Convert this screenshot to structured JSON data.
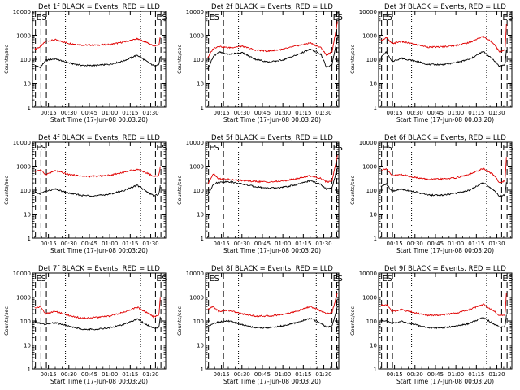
{
  "shared": {
    "ylabel": "Counts/sec",
    "xlabel": "Start Time (17-Jun-08 00:03:20)",
    "x_ticks": [
      "00:15",
      "00:30",
      "00:45",
      "01:00",
      "01:15",
      "01:30"
    ],
    "y_ticks": [
      "1",
      "10",
      "100",
      "1000",
      "10000"
    ],
    "black_color": "#000000",
    "red_color": "#e00000",
    "x_range_minutes": [
      3.33,
      101
    ],
    "y_range": [
      1,
      10000
    ],
    "y_scale": "log"
  },
  "chart_data": [
    {
      "type": "line",
      "title": "Det 1f BLACK = Events, RED = LLD",
      "series": [
        {
          "x": [
            5,
            9,
            13,
            20,
            30,
            40,
            50,
            60,
            70,
            80,
            88,
            92,
            96,
            97
          ],
          "values": [
            260,
            330,
            560,
            650,
            460,
            390,
            390,
            410,
            520,
            700,
            480,
            360,
            380,
            900
          ]
        },
        {
          "x": [
            5,
            9,
            13,
            20,
            30,
            40,
            50,
            60,
            70,
            80,
            88,
            92,
            96,
            97
          ],
          "values": [
            55,
            45,
            90,
            105,
            70,
            55,
            55,
            62,
            85,
            150,
            75,
            55,
            60,
            130
          ]
        }
      ],
      "markers": {
        "dashed": [
          5.5,
          9.5,
          13.5,
          93.5,
          97.5
        ],
        "dotted": [
          27.5,
          82.5
        ],
        "labels": [
          {
            "text": "E",
            "x": 5.5
          },
          {
            "text": "S",
            "x": 9.5
          },
          {
            "text": "E",
            "x": 93.5
          },
          {
            "text": "S",
            "x": 97.5
          }
        ]
      }
    },
    {
      "type": "line",
      "title": "Det 2f BLACK = Events, RED = LLD",
      "series": [
        {
          "x": [
            5,
            9,
            13,
            20,
            30,
            40,
            50,
            60,
            70,
            80,
            88,
            92,
            96,
            100
          ],
          "values": [
            120,
            280,
            350,
            300,
            350,
            240,
            220,
            260,
            360,
            480,
            300,
            150,
            200,
            3500
          ]
        },
        {
          "x": [
            5,
            9,
            13,
            20,
            30,
            40,
            50,
            60,
            70,
            80,
            88,
            92,
            96,
            100
          ],
          "values": [
            40,
            130,
            200,
            160,
            190,
            100,
            75,
            95,
            150,
            260,
            160,
            45,
            60,
            800
          ]
        }
      ],
      "markers": {
        "dashed": [
          5.5,
          16.5,
          96,
          99.5
        ],
        "dotted": [
          27.5,
          84.5
        ],
        "labels": [
          {
            "text": "E",
            "x": 5.5
          },
          {
            "text": "S",
            "x": 9
          },
          {
            "text": "E",
            "x": 96
          },
          {
            "text": "S",
            "x": 99.5
          }
        ]
      }
    },
    {
      "type": "line",
      "title": "Det 3f BLACK = Events, RED = LLD",
      "series": [
        {
          "x": [
            5,
            9,
            13,
            20,
            30,
            40,
            50,
            60,
            70,
            80,
            88,
            92,
            96,
            97
          ],
          "values": [
            600,
            800,
            450,
            550,
            420,
            320,
            330,
            380,
            500,
            900,
            450,
            200,
            250,
            3000
          ]
        },
        {
          "x": [
            5,
            9,
            13,
            20,
            30,
            40,
            50,
            60,
            70,
            80,
            88,
            92,
            96,
            97
          ],
          "values": [
            120,
            200,
            80,
            110,
            85,
            60,
            60,
            72,
            100,
            210,
            90,
            50,
            60,
            250
          ]
        }
      ],
      "markers": {
        "dashed": [
          5.5,
          9.5,
          13.5,
          93.5,
          97.5
        ],
        "dotted": [
          27.5,
          82.5
        ],
        "labels": [
          {
            "text": "E",
            "x": 5.5
          },
          {
            "text": "S",
            "x": 9
          },
          {
            "text": "E",
            "x": 93.5
          },
          {
            "text": "S",
            "x": 97.5
          }
        ]
      }
    },
    {
      "type": "line",
      "title": "Det 4f BLACK = Events, RED = LLD",
      "series": [
        {
          "x": [
            5,
            9,
            13,
            20,
            30,
            40,
            50,
            60,
            70,
            80,
            88,
            92,
            96,
            97
          ],
          "values": [
            600,
            700,
            450,
            650,
            450,
            380,
            380,
            420,
            560,
            750,
            500,
            380,
            420,
            950
          ]
        },
        {
          "x": [
            5,
            9,
            13,
            20,
            30,
            40,
            50,
            60,
            70,
            80,
            88,
            92,
            96,
            97
          ],
          "values": [
            80,
            70,
            90,
            110,
            75,
            60,
            58,
            68,
            95,
            160,
            80,
            60,
            65,
            160
          ]
        }
      ],
      "markers": {
        "dashed": [
          5.5,
          9.5,
          13.5,
          93.5,
          97.5
        ],
        "dotted": [
          27.5,
          82.5
        ],
        "labels": [
          {
            "text": "E",
            "x": 5.5
          },
          {
            "text": "S",
            "x": 9
          },
          {
            "text": "E",
            "x": 93.5
          },
          {
            "text": "S",
            "x": 97.5
          }
        ]
      }
    },
    {
      "type": "line",
      "title": "Det 5f BLACK = Events, RED = LLD",
      "series": [
        {
          "x": [
            5,
            9,
            13,
            20,
            30,
            40,
            50,
            60,
            70,
            80,
            88,
            92,
            96,
            100
          ],
          "values": [
            180,
            500,
            300,
            280,
            250,
            230,
            220,
            240,
            300,
            400,
            310,
            220,
            240,
            2800
          ]
        },
        {
          "x": [
            5,
            9,
            13,
            20,
            30,
            40,
            50,
            60,
            70,
            80,
            88,
            92,
            96,
            100
          ],
          "values": [
            60,
            180,
            210,
            230,
            180,
            140,
            120,
            130,
            170,
            250,
            170,
            110,
            120,
            900
          ]
        }
      ],
      "markers": {
        "dashed": [
          5.5,
          16.5,
          96,
          99.5
        ],
        "dotted": [
          27.5,
          84.5
        ],
        "labels": [
          {
            "text": "E",
            "x": 5.5
          },
          {
            "text": "S",
            "x": 9
          },
          {
            "text": "E",
            "x": 96
          },
          {
            "text": "S",
            "x": 99.5
          }
        ]
      }
    },
    {
      "type": "line",
      "title": "Det 6f BLACK = Events, RED = LLD",
      "series": [
        {
          "x": [
            5,
            9,
            13,
            20,
            30,
            40,
            50,
            60,
            70,
            80,
            88,
            92,
            96,
            97
          ],
          "values": [
            650,
            800,
            400,
            450,
            340,
            280,
            290,
            330,
            450,
            800,
            420,
            200,
            250,
            2500
          ]
        },
        {
          "x": [
            5,
            9,
            13,
            20,
            30,
            40,
            50,
            60,
            70,
            80,
            88,
            92,
            96,
            97
          ],
          "values": [
            140,
            180,
            90,
            110,
            85,
            62,
            62,
            75,
            100,
            210,
            95,
            55,
            65,
            220
          ]
        }
      ],
      "markers": {
        "dashed": [
          5.5,
          9.5,
          13.5,
          93.5,
          97.5
        ],
        "dotted": [
          27.5,
          82.5
        ],
        "labels": [
          {
            "text": "E",
            "x": 5.5
          },
          {
            "text": "S",
            "x": 9
          },
          {
            "text": "E",
            "x": 93.5
          },
          {
            "text": "S",
            "x": 97.5
          }
        ]
      }
    },
    {
      "type": "line",
      "title": "Det 7f BLACK = Events, RED = LLD",
      "series": [
        {
          "x": [
            5,
            9,
            13,
            20,
            30,
            40,
            50,
            60,
            70,
            80,
            88,
            92,
            96,
            97
          ],
          "values": [
            350,
            400,
            200,
            250,
            170,
            130,
            140,
            160,
            230,
            380,
            210,
            150,
            170,
            900
          ]
        },
        {
          "x": [
            5,
            9,
            13,
            20,
            30,
            40,
            50,
            60,
            70,
            80,
            88,
            92,
            96,
            97
          ],
          "values": [
            90,
            80,
            70,
            85,
            60,
            45,
            45,
            52,
            70,
            120,
            65,
            50,
            55,
            150
          ]
        }
      ],
      "markers": {
        "dashed": [
          5.5,
          9.5,
          13.5,
          93.5,
          97.5
        ],
        "dotted": [
          27.5,
          82.5
        ],
        "labels": [
          {
            "text": "E",
            "x": 5.5
          },
          {
            "text": "S",
            "x": 9
          },
          {
            "text": "E",
            "x": 93.5
          },
          {
            "text": "S",
            "x": 97.5
          }
        ]
      }
    },
    {
      "type": "line",
      "title": "Det 8f BLACK = Events, RED = LLD",
      "series": [
        {
          "x": [
            5,
            9,
            13,
            20,
            30,
            40,
            50,
            60,
            70,
            80,
            88,
            92,
            96,
            100
          ],
          "values": [
            300,
            400,
            250,
            280,
            200,
            160,
            160,
            190,
            250,
            400,
            260,
            200,
            220,
            1500
          ]
        },
        {
          "x": [
            5,
            9,
            13,
            20,
            30,
            40,
            50,
            60,
            70,
            80,
            88,
            92,
            96,
            100
          ],
          "values": [
            60,
            80,
            90,
            100,
            70,
            52,
            52,
            62,
            85,
            130,
            80,
            55,
            60,
            400
          ]
        }
      ],
      "markers": {
        "dashed": [
          5.5,
          16.5,
          96,
          99.5
        ],
        "dotted": [
          27.5,
          84.5
        ],
        "labels": [
          {
            "text": "E",
            "x": 5.5
          },
          {
            "text": "S",
            "x": 9
          },
          {
            "text": "E",
            "x": 96
          },
          {
            "text": "S",
            "x": 99.5
          }
        ]
      }
    },
    {
      "type": "line",
      "title": "Det 9f BLACK = Events, RED = LLD",
      "series": [
        {
          "x": [
            5,
            9,
            13,
            20,
            30,
            40,
            50,
            60,
            70,
            80,
            88,
            92,
            96,
            97
          ],
          "values": [
            450,
            500,
            250,
            300,
            220,
            170,
            180,
            210,
            300,
            500,
            260,
            160,
            180,
            1500
          ]
        },
        {
          "x": [
            5,
            9,
            13,
            20,
            30,
            40,
            50,
            60,
            70,
            80,
            88,
            92,
            96,
            97
          ],
          "values": [
            110,
            100,
            80,
            95,
            70,
            52,
            52,
            60,
            80,
            140,
            75,
            55,
            60,
            180
          ]
        }
      ],
      "markers": {
        "dashed": [
          5.5,
          9.5,
          13.5,
          93.5,
          97.5
        ],
        "dotted": [
          27.5,
          82.5
        ],
        "labels": [
          {
            "text": "E",
            "x": 5.5
          },
          {
            "text": "S",
            "x": 9
          },
          {
            "text": "E",
            "x": 93.5
          },
          {
            "text": "S",
            "x": 97.5
          }
        ]
      }
    }
  ]
}
